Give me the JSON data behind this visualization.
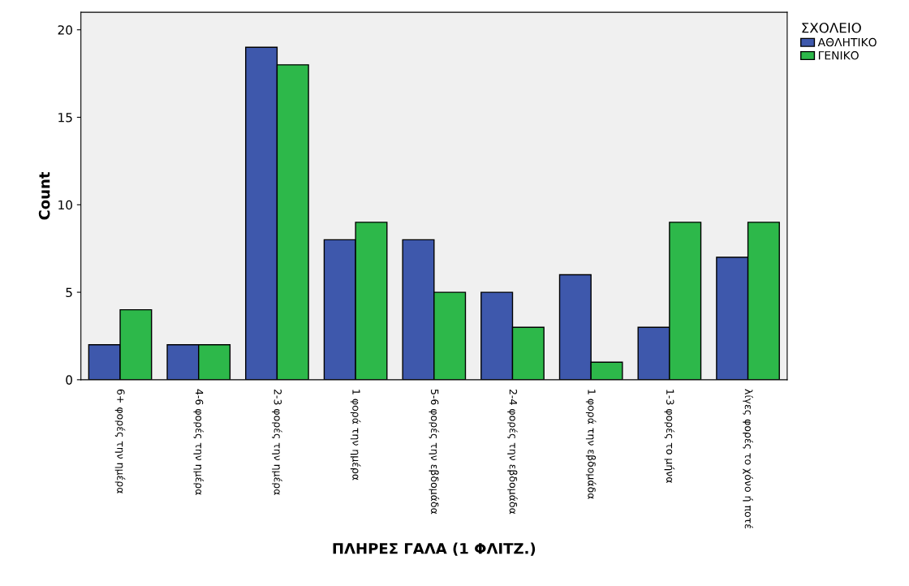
{
  "chart_data": {
    "type": "bar",
    "xlabel": "ΠΛΗΡΕΣ ΓΑΛΑ (1 ΦΛΙΤΖ.)",
    "ylabel": "Count",
    "legend_title": "ΣΧΟΛΕΙΟ",
    "categories": [
      "6+ φορές την ημέρα",
      "4-6 φορές την ημέρα",
      "2-3 φορές την ημέρα",
      "1 φορά την ημέρα",
      "5-6 φορές την εβδομάδα",
      "2-4 φορές την εβδομάδα",
      "1 φορά την εβδομάδα",
      "1-3 φορές το μήνα",
      "λίγες φορές το χόνο ή ποτέ"
    ],
    "series": [
      {
        "name": "ΑΘΛΗΤΙΚΟ",
        "color": "#3e58ac",
        "values": [
          2,
          2,
          19,
          8,
          8,
          5,
          6,
          3,
          7
        ]
      },
      {
        "name": "ΓΕΝΙΚΟ",
        "color": "#2db84a",
        "values": [
          4,
          2,
          18,
          9,
          5,
          3,
          1,
          9,
          9
        ]
      }
    ],
    "ylim": [
      0,
      21
    ],
    "yticks": [
      0,
      5,
      10,
      15,
      20
    ],
    "grid": false,
    "legend": "top right"
  }
}
